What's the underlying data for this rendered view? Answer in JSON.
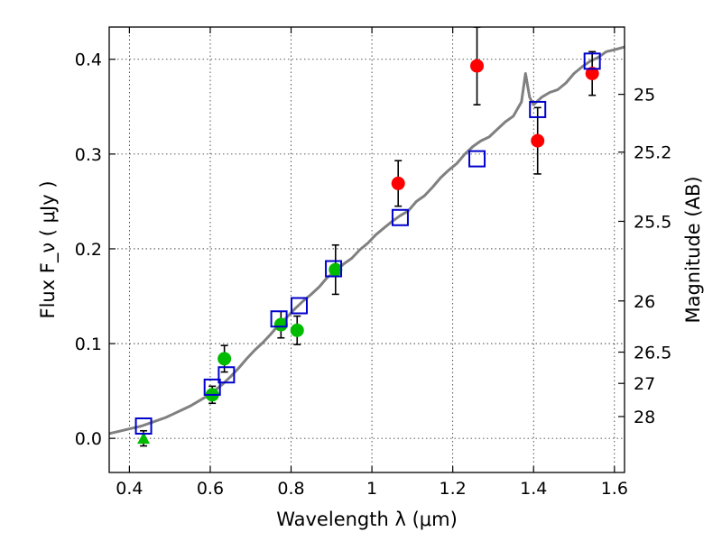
{
  "chart_data": {
    "type": "scatter",
    "xlabel": "Wavelength  λ (μm)",
    "ylabel": "Flux  F_ν  ( μJy )",
    "right_ylabel": "Magnitude (AB)",
    "xlim": [
      0.35,
      1.625
    ],
    "ylim": [
      -0.036,
      0.434
    ],
    "x_ticks": [
      "0.4",
      "0.6",
      "0.8",
      "1",
      "1.2",
      "1.4",
      "1.6"
    ],
    "x_tick_values": [
      0.4,
      0.6,
      0.8,
      1.0,
      1.2,
      1.4,
      1.6
    ],
    "y_ticks": [
      "0.0",
      "0.1",
      "0.2",
      "0.3",
      "0.4"
    ],
    "y_tick_values": [
      0.0,
      0.1,
      0.2,
      0.3,
      0.4
    ],
    "right_ticks": [
      {
        "label": "25",
        "flux": 0.363
      },
      {
        "label": "25.2",
        "flux": 0.302
      },
      {
        "label": "25.5",
        "flux": 0.229
      },
      {
        "label": "26",
        "flux": 0.145
      },
      {
        "label": "26.5",
        "flux": 0.091
      },
      {
        "label": "27",
        "flux": 0.058
      },
      {
        "label": "28",
        "flux": 0.023
      }
    ],
    "grid": true,
    "series": [
      {
        "kind": "line",
        "color": "#808080",
        "x": [
          0.35,
          0.37,
          0.39,
          0.41,
          0.43,
          0.45,
          0.47,
          0.49,
          0.51,
          0.53,
          0.55,
          0.57,
          0.59,
          0.61,
          0.63,
          0.65,
          0.67,
          0.69,
          0.71,
          0.73,
          0.75,
          0.77,
          0.79,
          0.81,
          0.83,
          0.85,
          0.87,
          0.89,
          0.91,
          0.93,
          0.95,
          0.97,
          0.99,
          1.01,
          1.03,
          1.05,
          1.07,
          1.09,
          1.11,
          1.13,
          1.15,
          1.17,
          1.19,
          1.21,
          1.23,
          1.25,
          1.27,
          1.29,
          1.31,
          1.33,
          1.35,
          1.37,
          1.38,
          1.39,
          1.4,
          1.42,
          1.44,
          1.46,
          1.48,
          1.5,
          1.52,
          1.54,
          1.56,
          1.58,
          1.6,
          1.625
        ],
        "y": [
          0.005,
          0.007,
          0.009,
          0.011,
          0.013,
          0.016,
          0.019,
          0.022,
          0.026,
          0.03,
          0.034,
          0.039,
          0.044,
          0.05,
          0.057,
          0.065,
          0.074,
          0.084,
          0.093,
          0.101,
          0.11,
          0.12,
          0.128,
          0.137,
          0.145,
          0.152,
          0.16,
          0.17,
          0.176,
          0.184,
          0.19,
          0.199,
          0.206,
          0.215,
          0.222,
          0.229,
          0.235,
          0.24,
          0.25,
          0.256,
          0.265,
          0.275,
          0.283,
          0.29,
          0.3,
          0.308,
          0.314,
          0.318,
          0.326,
          0.334,
          0.34,
          0.355,
          0.385,
          0.36,
          0.352,
          0.36,
          0.365,
          0.368,
          0.375,
          0.385,
          0.392,
          0.398,
          0.402,
          0.408,
          0.41,
          0.413
        ]
      },
      {
        "kind": "points",
        "marker": "circle",
        "color": "#ff0000",
        "x": [
          1.065,
          1.26,
          1.41,
          1.545
        ],
        "y": [
          0.269,
          0.393,
          0.314,
          0.385
        ],
        "yerr": [
          0.024,
          0.041,
          0.035,
          0.023
        ]
      },
      {
        "kind": "points",
        "marker": "circle",
        "color": "#00bb00",
        "x": [
          0.605,
          0.635,
          0.775,
          0.815,
          0.91
        ],
        "y": [
          0.046,
          0.084,
          0.12,
          0.114,
          0.178
        ],
        "yerr": [
          0.009,
          0.014,
          0.014,
          0.015,
          0.026
        ]
      },
      {
        "kind": "points",
        "marker": "triangle",
        "color": "#00bb00",
        "x": [
          0.435
        ],
        "y": [
          0.0
        ],
        "yerr": [
          0.008
        ]
      },
      {
        "kind": "points",
        "marker": "open-square",
        "color": "#0000cc",
        "x": [
          0.435,
          0.605,
          0.64,
          0.77,
          0.82,
          0.905,
          1.07,
          1.26,
          1.41,
          1.545
        ],
        "y": [
          0.013,
          0.054,
          0.067,
          0.126,
          0.14,
          0.179,
          0.233,
          0.295,
          0.347,
          0.398
        ]
      }
    ]
  }
}
